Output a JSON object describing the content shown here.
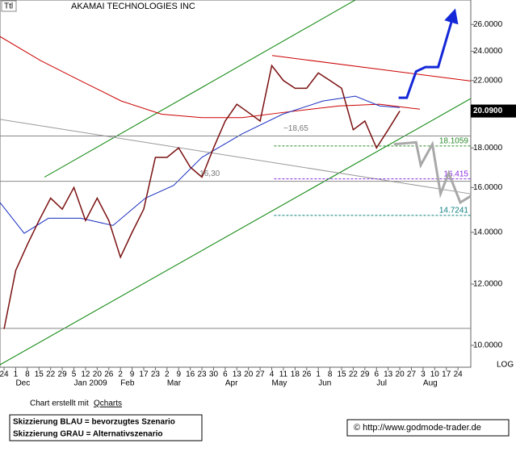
{
  "chart_data": {
    "type": "line",
    "symbol": "Ttl",
    "title": "AKAMAI TECHNOLOGIES INC",
    "log_scale": true,
    "scale_label": "LOG",
    "categories": [
      "24",
      "1",
      "8",
      "15",
      "22",
      "29",
      "5",
      "12",
      "20",
      "26",
      "2",
      "9",
      "17",
      "23",
      "2",
      "9",
      "16",
      "23",
      "30",
      "6",
      "13",
      "20",
      "27",
      "4",
      "11",
      "18",
      "26",
      "1",
      "8",
      "15",
      "22",
      "29",
      "6",
      "13",
      "20",
      "27",
      "3",
      "10",
      "17",
      "24"
    ],
    "months": [
      {
        "label": "Dec",
        "index": 1
      },
      {
        "label": "Jan 2009",
        "index": 6
      },
      {
        "label": "Feb",
        "index": 10
      },
      {
        "label": "Mar",
        "index": 14
      },
      {
        "label": "Apr",
        "index": 19
      },
      {
        "label": "May",
        "index": 23
      },
      {
        "label": "Jun",
        "index": 27
      },
      {
        "label": "Jul",
        "index": 32
      },
      {
        "label": "Aug",
        "index": 36
      }
    ],
    "xlim": [
      -0.35,
      40.1
    ],
    "ylim": [
      9.37,
      27.96
    ],
    "yticks": [
      {
        "value": 10,
        "label": "10.0000"
      },
      {
        "value": 12,
        "label": "12.0000"
      },
      {
        "value": 14,
        "label": "14.0000"
      },
      {
        "value": 16,
        "label": "16.0000"
      },
      {
        "value": 18,
        "label": "18.0000"
      },
      {
        "value": 20,
        "label": "20.0000"
      },
      {
        "value": 22,
        "label": "22.0000"
      },
      {
        "value": 24,
        "label": "24.0000"
      },
      {
        "value": 26,
        "label": "26.0000"
      }
    ],
    "series": [
      {
        "color": "#7a1010",
        "values": [
          10.5,
          12.5,
          13.5,
          14.5,
          15.5,
          15.0,
          16.0,
          14.5,
          15.5,
          14.5,
          13.0,
          14.0,
          15.0,
          17.5,
          17.5,
          18.0,
          17.0,
          16.5,
          18.0,
          19.5,
          20.5,
          20.0,
          19.5,
          23.0,
          22.0,
          21.5,
          21.5,
          22.5,
          22.0,
          21.5,
          19.0,
          19.5,
          18.0,
          19.0,
          20.09,
          null,
          null,
          null,
          null,
          null
        ]
      }
    ],
    "last_price": {
      "value": 20.09,
      "label": "20.0900"
    },
    "lines": [
      {
        "color": "#008000",
        "x": [
          3.47,
          30.18
        ],
        "values": [
          16.5,
          27.96
        ]
      },
      {
        "color": "#008000",
        "x": [
          -0.35,
          40.1
        ],
        "values": [
          9.44,
          20.85
        ]
      },
      {
        "color": "#cc0000",
        "x": [
          23.03,
          40.1
        ],
        "values": [
          23.7,
          21.97
        ]
      },
      {
        "color": "#cc0000",
        "x": [
          -0.35,
          3.12,
          6.59,
          10.06,
          13.53,
          16.99,
          20.46,
          23.93,
          28.79,
          32.26,
          35.73
        ],
        "values": [
          25.08,
          23.35,
          21.98,
          20.7,
          19.9,
          19.7,
          19.7,
          20.0,
          20.4,
          20.5,
          20.2
        ]
      },
      {
        "color": "#1a2fc0",
        "x": [
          -0.35,
          1.73,
          3.81,
          6.59,
          9.36,
          12.14,
          14.57,
          16.99,
          20.46,
          23.93,
          27.4,
          30.18,
          32.26,
          33.99
        ],
        "values": [
          15.3,
          13.96,
          14.6,
          14.6,
          14.29,
          15.5,
          16.1,
          17.5,
          18.77,
          19.9,
          20.7,
          21.0,
          20.4,
          20.3
        ]
      },
      {
        "color": "#999999",
        "x": [
          -0.35,
          40.1
        ],
        "values": [
          19.6,
          15.7
        ]
      },
      {
        "color": "#888888",
        "x": [
          -0.35,
          40.1
        ],
        "values": [
          18.65,
          18.65
        ]
      },
      {
        "color": "#888888",
        "x": [
          -0.35,
          40.1
        ],
        "values": [
          16.3,
          16.3
        ]
      },
      {
        "color": "#888888",
        "x": [
          -0.35,
          40.1
        ],
        "values": [
          10.52,
          10.52
        ]
      }
    ],
    "annotations": [
      {
        "value": 18.65,
        "label": "~18,65",
        "x": 24.0
      },
      {
        "value": 16.3,
        "label": "16,30",
        "x": 16.8
      }
    ],
    "levels": [
      {
        "value": 18.1059,
        "color": "#2e8b2e"
      },
      {
        "value": 16.415,
        "color": "#8a2be2"
      },
      {
        "value": 14.7241,
        "color": "#108080"
      }
    ],
    "level_start": 23.2,
    "scenarios": [
      {
        "color": "#1428d8",
        "x": [
          33.9,
          34.6,
          35.4,
          36.2,
          37.3,
          38.6
        ],
        "values": [
          20.9,
          20.9,
          22.6,
          22.9,
          22.9,
          26.7
        ]
      },
      {
        "color": "#a8a8a8",
        "x": [
          33.5,
          35.4,
          35.8,
          36.8,
          37.5,
          38.2,
          39.2,
          40.1
        ],
        "values": [
          18.2,
          18.3,
          17.1,
          18.2,
          15.7,
          16.7,
          15.3,
          15.6
        ]
      }
    ]
  },
  "footer": {
    "credit_prefix": "Chart erstellt mit",
    "credit_link": "Qcharts",
    "notes": [
      "Skizzierung BLAU = bevorzugtes Szenario",
      "Skizzierung GRAU = Alternativszenario"
    ],
    "source": "© http://www.godmode-trader.de"
  }
}
